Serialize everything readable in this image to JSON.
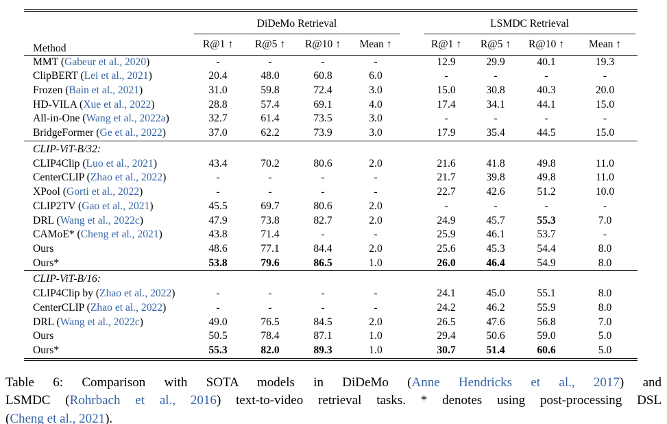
{
  "colors": {
    "citation_blue": "#3564a6",
    "text": "#000000",
    "background": "#ffffff"
  },
  "table": {
    "header": {
      "method_label": "Method",
      "groups": [
        {
          "label": "DiDeMo Retrieval"
        },
        {
          "label": "LSMDC Retrieval"
        }
      ],
      "metrics": [
        "R@1 ↑",
        "R@5 ↑",
        "R@10 ↑",
        "Mean ↑"
      ]
    },
    "blocks": [
      {
        "heading": null,
        "rows": [
          {
            "method": "MMT",
            "cite": "Gabeur et al., 2020",
            "values": [
              "-",
              "-",
              "-",
              "-",
              "12.9",
              "29.9",
              "40.1",
              "19.3"
            ],
            "bold": []
          },
          {
            "method": "ClipBERT",
            "cite": "Lei et al., 2021",
            "values": [
              "20.4",
              "48.0",
              "60.8",
              "6.0",
              "-",
              "-",
              "-",
              "-"
            ],
            "bold": []
          },
          {
            "method": "Frozen",
            "cite": "Bain et al., 2021",
            "values": [
              "31.0",
              "59.8",
              "72.4",
              "3.0",
              "15.0",
              "30.8",
              "40.3",
              "20.0"
            ],
            "bold": []
          },
          {
            "method": "HD-VILA",
            "cite": "Xue et al., 2022",
            "values": [
              "28.8",
              "57.4",
              "69.1",
              "4.0",
              "17.4",
              "34.1",
              "44.1",
              "15.0"
            ],
            "bold": []
          },
          {
            "method": "All-in-One",
            "cite": "Wang et al., 2022a",
            "values": [
              "32.7",
              "61.4",
              "73.5",
              "3.0",
              "-",
              "-",
              "-",
              "-"
            ],
            "bold": []
          },
          {
            "method": "BridgeFormer",
            "cite": "Ge et al., 2022",
            "values": [
              "37.0",
              "62.2",
              "73.9",
              "3.0",
              "17.9",
              "35.4",
              "44.5",
              "15.0"
            ],
            "bold": []
          }
        ]
      },
      {
        "heading": "CLIP-ViT-B/32:",
        "rows": [
          {
            "method": "CLIP4Clip",
            "cite": "Luo et al., 2021",
            "values": [
              "43.4",
              "70.2",
              "80.6",
              "2.0",
              "21.6",
              "41.8",
              "49.8",
              "11.0"
            ],
            "bold": []
          },
          {
            "method": "CenterCLIP",
            "cite": "Zhao et al., 2022",
            "values": [
              "-",
              "-",
              "-",
              "-",
              "21.7",
              "39.8",
              "49.8",
              "11.0"
            ],
            "bold": []
          },
          {
            "method": "XPool",
            "cite": "Gorti et al., 2022",
            "values": [
              "-",
              "-",
              "-",
              "-",
              "22.7",
              "42.6",
              "51.2",
              "10.0"
            ],
            "bold": []
          },
          {
            "method": "CLIP2TV",
            "cite": "Gao et al., 2021",
            "values": [
              "45.5",
              "69.7",
              "80.6",
              "2.0",
              "-",
              "-",
              "-",
              "-"
            ],
            "bold": []
          },
          {
            "method": "DRL",
            "cite": "Wang et al., 2022c",
            "values": [
              "47.9",
              "73.8",
              "82.7",
              "2.0",
              "24.9",
              "45.7",
              "55.3",
              "7.0"
            ],
            "bold": [
              6
            ]
          },
          {
            "method": "CAMoE*",
            "cite": "Cheng et al., 2021",
            "values": [
              "43.8",
              "71.4",
              "-",
              "-",
              "25.9",
              "46.1",
              "53.7",
              "-"
            ],
            "bold": []
          },
          {
            "method": "Ours",
            "cite": null,
            "values": [
              "48.6",
              "77.1",
              "84.4",
              "2.0",
              "25.6",
              "45.3",
              "54.4",
              "8.0"
            ],
            "bold": []
          },
          {
            "method": "Ours*",
            "cite": null,
            "values": [
              "53.8",
              "79.6",
              "86.5",
              "1.0",
              "26.0",
              "46.4",
              "54.9",
              "8.0"
            ],
            "bold": [
              0,
              1,
              2,
              4,
              5
            ]
          }
        ]
      },
      {
        "heading": "CLIP-ViT-B/16:",
        "rows": [
          {
            "method": "CLIP4Clip by",
            "cite": "Zhao et al., 2022",
            "values": [
              "-",
              "-",
              "-",
              "-",
              "24.1",
              "45.0",
              "55.1",
              "8.0"
            ],
            "bold": []
          },
          {
            "method": "CenterCLIP",
            "cite": "Zhao et al., 2022",
            "values": [
              "-",
              "-",
              "-",
              "-",
              "24.2",
              "46.2",
              "55.9",
              "8.0"
            ],
            "bold": []
          },
          {
            "method": "DRL",
            "cite": "Wang et al., 2022c",
            "values": [
              "49.0",
              "76.5",
              "84.5",
              "2.0",
              "26.5",
              "47.6",
              "56.8",
              "7.0"
            ],
            "bold": []
          },
          {
            "method": "Ours",
            "cite": null,
            "values": [
              "50.5",
              "78.4",
              "87.1",
              "1.0",
              "29.4",
              "50.6",
              "59.0",
              "5.0"
            ],
            "bold": []
          },
          {
            "method": "Ours*",
            "cite": null,
            "values": [
              "55.3",
              "82.0",
              "89.3",
              "1.0",
              "30.7",
              "51.4",
              "60.6",
              "5.0"
            ],
            "bold": [
              0,
              1,
              2,
              4,
              5,
              6
            ]
          }
        ]
      }
    ]
  },
  "caption": {
    "lines": [
      {
        "justify": true,
        "segments": [
          {
            "text": "Table 6: Comparison with SOTA models in DiDeMo (",
            "cite": false
          },
          {
            "text": "Anne Hendricks et al., 2017",
            "cite": true
          },
          {
            "text": ") and",
            "cite": false
          }
        ]
      },
      {
        "justify": true,
        "segments": [
          {
            "text": "LSMDC (",
            "cite": false
          },
          {
            "text": "Rohrbach et al., 2016",
            "cite": true
          },
          {
            "text": ") text-to-video retrieval tasks. * denotes using post-processing DSL",
            "cite": false
          }
        ]
      },
      {
        "justify": false,
        "segments": [
          {
            "text": "(",
            "cite": false
          },
          {
            "text": "Cheng et al., 2021",
            "cite": true
          },
          {
            "text": ").",
            "cite": false
          }
        ]
      }
    ]
  }
}
